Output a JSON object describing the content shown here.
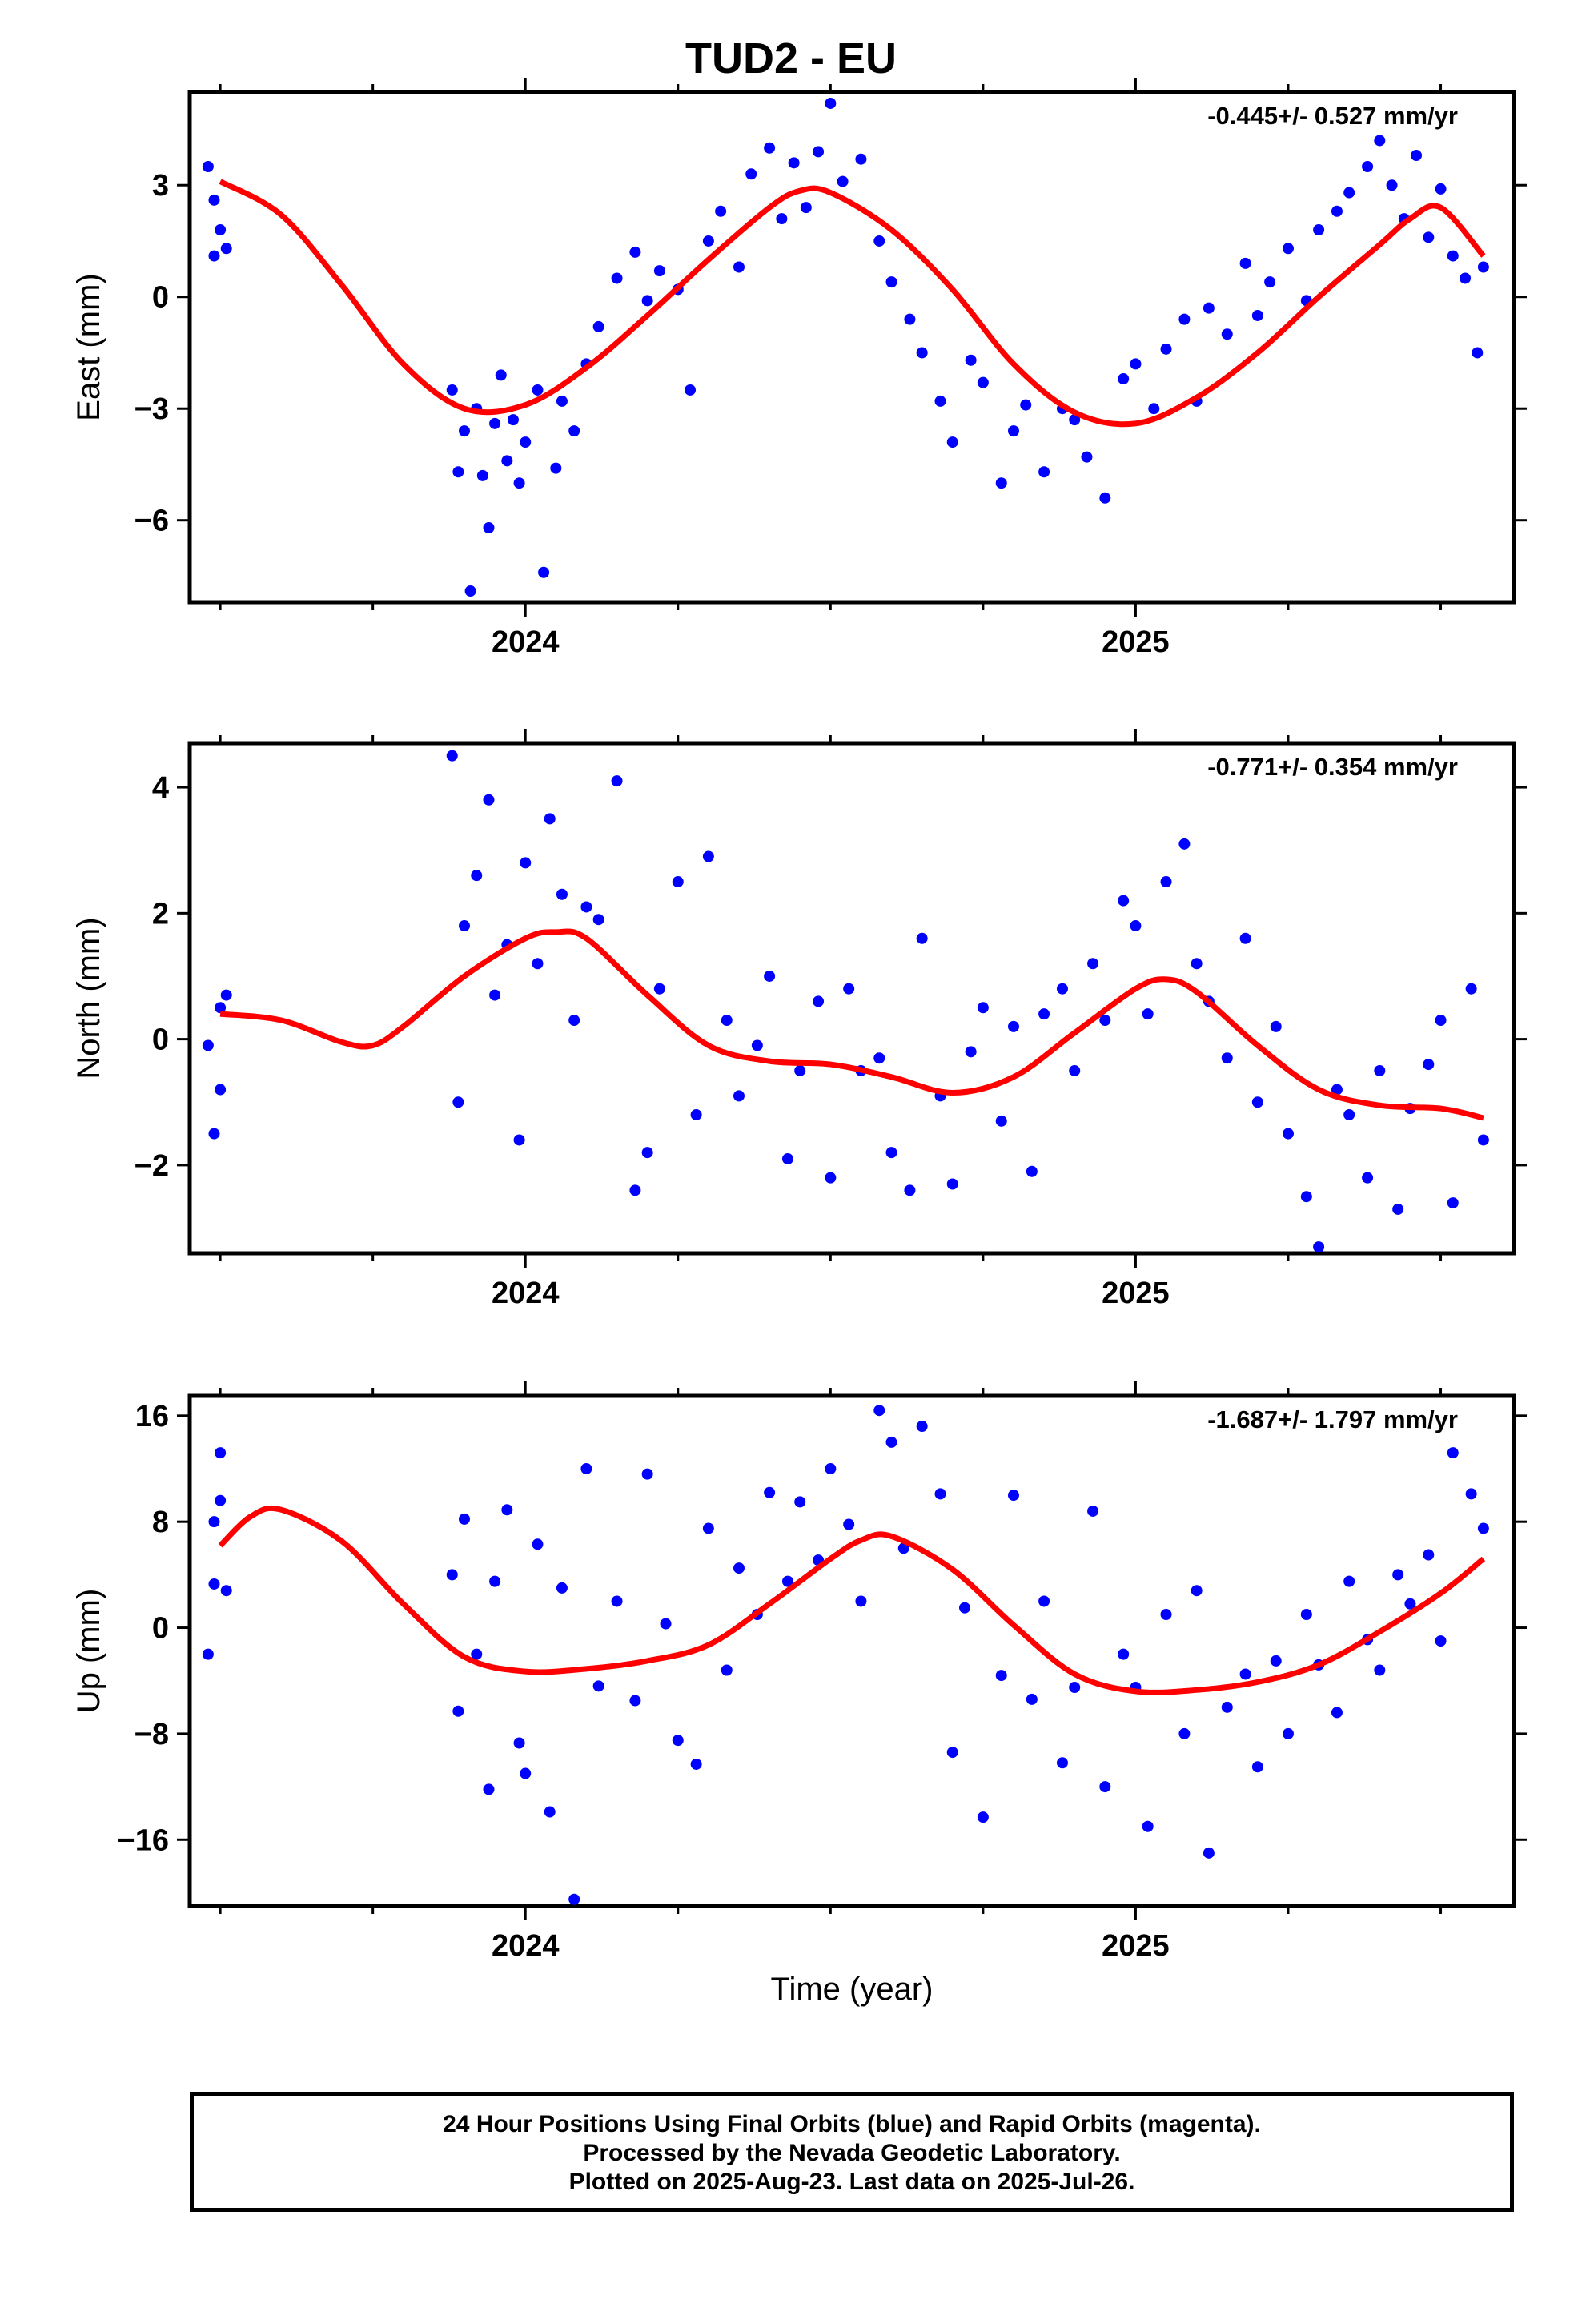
{
  "title": "TUD2 - EU",
  "xlabel": "Time (year)",
  "footer": {
    "line1": "24 Hour Positions Using Final Orbits (blue) and Rapid Orbits (magenta).",
    "line2": "Processed by the Nevada Geodetic Laboratory.",
    "line3": "Plotted on 2025-Aug-23. Last data on 2025-Jul-26."
  },
  "colors": {
    "points": "#0000ff",
    "fit": "#ff0000",
    "axes": "#000000"
  },
  "chart_data": [
    {
      "type": "scatter",
      "ylabel": "East (mm)",
      "rate": "-0.445+/- 0.527 mm/yr",
      "xlim": [
        2023.45,
        2025.62
      ],
      "ylim": [
        -8.2,
        5.5
      ],
      "yticks": [
        3,
        0,
        -3,
        -6
      ],
      "ytick_labels": [
        "3",
        "0",
        "−3",
        "−6"
      ],
      "xticks": [
        2024,
        2025
      ],
      "xtick_labels": [
        "2024",
        "2025"
      ],
      "series": [
        {
          "role": "fit",
          "x": [
            2023.5,
            2023.6,
            2023.7,
            2023.8,
            2023.9,
            2024.0,
            2024.1,
            2024.2,
            2024.3,
            2024.4,
            2024.45,
            2024.5,
            2024.6,
            2024.7,
            2024.8,
            2024.9,
            2025.0,
            2025.1,
            2025.2,
            2025.3,
            2025.4,
            2025.45,
            2025.5,
            2025.57
          ],
          "y": [
            3.1,
            2.2,
            0.3,
            -1.8,
            -3.0,
            -2.9,
            -1.9,
            -0.5,
            1.0,
            2.4,
            2.85,
            2.8,
            1.8,
            0.2,
            -1.8,
            -3.1,
            -3.4,
            -2.7,
            -1.5,
            0.0,
            1.4,
            2.1,
            2.4,
            1.1
          ]
        },
        {
          "role": "points",
          "x": [
            2023.48,
            2023.49,
            2023.49,
            2023.5,
            2023.51,
            2023.88,
            2023.89,
            2023.9,
            2023.91,
            2023.92,
            2023.93,
            2023.94,
            2023.95,
            2023.96,
            2023.97,
            2023.98,
            2023.99,
            2024.0,
            2024.02,
            2024.03,
            2024.05,
            2024.06,
            2024.08,
            2024.1,
            2024.12,
            2024.15,
            2024.18,
            2024.2,
            2024.22,
            2024.25,
            2024.27,
            2024.3,
            2024.32,
            2024.35,
            2024.37,
            2024.4,
            2024.42,
            2024.44,
            2024.46,
            2024.48,
            2024.5,
            2024.52,
            2024.55,
            2024.58,
            2024.6,
            2024.63,
            2024.65,
            2024.68,
            2024.7,
            2024.73,
            2024.75,
            2024.78,
            2024.8,
            2024.82,
            2024.85,
            2024.88,
            2024.9,
            2024.92,
            2024.95,
            2024.98,
            2025.0,
            2025.03,
            2025.05,
            2025.08,
            2025.1,
            2025.12,
            2025.15,
            2025.18,
            2025.2,
            2025.22,
            2025.25,
            2025.28,
            2025.3,
            2025.33,
            2025.35,
            2025.38,
            2025.4,
            2025.42,
            2025.44,
            2025.46,
            2025.48,
            2025.5,
            2025.52,
            2025.54,
            2025.56,
            2025.57
          ],
          "y": [
            3.5,
            2.6,
            1.1,
            1.8,
            1.3,
            -2.5,
            -4.7,
            -3.6,
            -7.9,
            -3.0,
            -4.8,
            -6.2,
            -3.4,
            -2.1,
            -4.4,
            -3.3,
            -5.0,
            -3.9,
            -2.5,
            -7.4,
            -4.6,
            -2.8,
            -3.6,
            -1.8,
            -0.8,
            0.5,
            1.2,
            -0.1,
            0.7,
            0.2,
            -2.5,
            1.5,
            2.3,
            0.8,
            3.3,
            4.0,
            2.1,
            3.6,
            2.4,
            3.9,
            5.2,
            3.1,
            3.7,
            1.5,
            0.4,
            -0.6,
            -1.5,
            -2.8,
            -3.9,
            -1.7,
            -2.3,
            -5.0,
            -3.6,
            -2.9,
            -4.7,
            -3.0,
            -3.3,
            -4.3,
            -5.4,
            -2.2,
            -1.8,
            -3.0,
            -1.4,
            -0.6,
            -2.8,
            -0.3,
            -1.0,
            0.9,
            -0.5,
            0.4,
            1.3,
            -0.1,
            1.8,
            2.3,
            2.8,
            3.5,
            4.2,
            3.0,
            2.1,
            3.8,
            1.6,
            2.9,
            1.1,
            0.5,
            -1.5,
            0.8
          ]
        }
      ]
    },
    {
      "type": "scatter",
      "ylabel": "North (mm)",
      "rate": "-0.771+/- 0.354 mm/yr",
      "xlim": [
        2023.45,
        2025.62
      ],
      "ylim": [
        -3.4,
        4.7
      ],
      "yticks": [
        4,
        2,
        0,
        -2
      ],
      "ytick_labels": [
        "4",
        "2",
        "0",
        "−2"
      ],
      "xticks": [
        2024,
        2025
      ],
      "xtick_labels": [
        "2024",
        "2025"
      ],
      "series": [
        {
          "role": "fit",
          "x": [
            2023.5,
            2023.6,
            2023.7,
            2023.75,
            2023.8,
            2023.9,
            2024.0,
            2024.05,
            2024.1,
            2024.2,
            2024.3,
            2024.4,
            2024.5,
            2024.6,
            2024.7,
            2024.8,
            2024.9,
            2025.0,
            2025.05,
            2025.1,
            2025.2,
            2025.3,
            2025.4,
            2025.5,
            2025.57
          ],
          "y": [
            0.4,
            0.3,
            -0.05,
            -0.1,
            0.2,
            1.0,
            1.6,
            1.7,
            1.6,
            0.7,
            -0.1,
            -0.35,
            -0.4,
            -0.6,
            -0.85,
            -0.6,
            0.1,
            0.8,
            0.95,
            0.75,
            -0.1,
            -0.8,
            -1.05,
            -1.1,
            -1.25
          ]
        },
        {
          "role": "points",
          "x": [
            2023.48,
            2023.49,
            2023.5,
            2023.5,
            2023.51,
            2023.88,
            2023.89,
            2023.9,
            2023.92,
            2023.94,
            2023.95,
            2023.97,
            2023.99,
            2024.0,
            2024.02,
            2024.04,
            2024.06,
            2024.08,
            2024.1,
            2024.12,
            2024.15,
            2024.18,
            2024.2,
            2024.22,
            2024.25,
            2024.28,
            2024.3,
            2024.33,
            2024.35,
            2024.38,
            2024.4,
            2024.43,
            2024.45,
            2024.48,
            2024.5,
            2024.53,
            2024.55,
            2024.58,
            2024.6,
            2024.63,
            2024.65,
            2024.68,
            2024.7,
            2024.73,
            2024.75,
            2024.78,
            2024.8,
            2024.83,
            2024.85,
            2024.88,
            2024.9,
            2024.93,
            2024.95,
            2024.98,
            2025.0,
            2025.02,
            2025.05,
            2025.08,
            2025.1,
            2025.12,
            2025.15,
            2025.18,
            2025.2,
            2025.23,
            2025.25,
            2025.28,
            2025.3,
            2025.33,
            2025.35,
            2025.38,
            2025.4,
            2025.43,
            2025.45,
            2025.48,
            2025.5,
            2025.52,
            2025.55,
            2025.57
          ],
          "y": [
            -0.1,
            -1.5,
            0.5,
            -0.8,
            0.7,
            4.5,
            -1.0,
            1.8,
            2.6,
            3.8,
            0.7,
            1.5,
            -1.6,
            2.8,
            1.2,
            3.5,
            2.3,
            0.3,
            2.1,
            1.9,
            4.1,
            -2.4,
            -1.8,
            0.8,
            2.5,
            -1.2,
            2.9,
            0.3,
            -0.9,
            -0.1,
            1.0,
            -1.9,
            -0.5,
            0.6,
            -2.2,
            0.8,
            -0.5,
            -0.3,
            -1.8,
            -2.4,
            1.6,
            -0.9,
            -2.3,
            -0.2,
            0.5,
            -1.3,
            0.2,
            -2.1,
            0.4,
            0.8,
            -0.5,
            1.2,
            0.3,
            2.2,
            1.8,
            0.4,
            2.5,
            3.1,
            1.2,
            0.6,
            -0.3,
            1.6,
            -1.0,
            0.2,
            -1.5,
            -2.5,
            -3.3,
            -0.8,
            -1.2,
            -2.2,
            -0.5,
            -2.7,
            -1.1,
            -0.4,
            0.3,
            -2.6,
            0.8,
            -1.6
          ]
        }
      ]
    },
    {
      "type": "scatter",
      "ylabel": "Up (mm)",
      "rate": "-1.687+/- 1.797 mm/yr",
      "xlim": [
        2023.45,
        2025.62
      ],
      "ylim": [
        -21,
        17.5
      ],
      "yticks": [
        16,
        8,
        0,
        -8,
        -16
      ],
      "ytick_labels": [
        "16",
        "8",
        "0",
        "−8",
        "−16"
      ],
      "xticks": [
        2024,
        2025
      ],
      "xtick_labels": [
        "2024",
        "2025"
      ],
      "series": [
        {
          "role": "fit",
          "x": [
            2023.5,
            2023.55,
            2023.6,
            2023.7,
            2023.8,
            2023.9,
            2024.0,
            2024.1,
            2024.2,
            2024.3,
            2024.4,
            2024.5,
            2024.55,
            2024.6,
            2024.7,
            2024.8,
            2024.9,
            2025.0,
            2025.1,
            2025.2,
            2025.3,
            2025.4,
            2025.5,
            2025.57
          ],
          "y": [
            6.2,
            8.4,
            8.9,
            6.5,
            1.8,
            -2.2,
            -3.3,
            -3.1,
            -2.5,
            -1.3,
            1.8,
            5.2,
            6.6,
            6.9,
            4.4,
            0.2,
            -3.5,
            -4.8,
            -4.7,
            -4.1,
            -2.8,
            -0.3,
            2.6,
            5.2
          ]
        },
        {
          "role": "points",
          "x": [
            2023.48,
            2023.49,
            2023.49,
            2023.5,
            2023.5,
            2023.51,
            2023.88,
            2023.89,
            2023.9,
            2023.92,
            2023.94,
            2023.95,
            2023.97,
            2023.99,
            2024.0,
            2024.02,
            2024.04,
            2024.06,
            2024.08,
            2024.1,
            2024.12,
            2024.15,
            2024.18,
            2024.2,
            2024.23,
            2024.25,
            2024.28,
            2024.3,
            2024.33,
            2024.35,
            2024.38,
            2024.4,
            2024.43,
            2024.45,
            2024.48,
            2024.5,
            2024.53,
            2024.55,
            2024.58,
            2024.6,
            2024.62,
            2024.65,
            2024.68,
            2024.7,
            2024.72,
            2024.75,
            2024.78,
            2024.8,
            2024.83,
            2024.85,
            2024.88,
            2024.9,
            2024.93,
            2024.95,
            2024.98,
            2025.0,
            2025.02,
            2025.05,
            2025.08,
            2025.1,
            2025.12,
            2025.15,
            2025.18,
            2025.2,
            2025.23,
            2025.25,
            2025.28,
            2025.3,
            2025.33,
            2025.35,
            2025.38,
            2025.4,
            2025.43,
            2025.45,
            2025.48,
            2025.5,
            2025.52,
            2025.55,
            2025.57
          ],
          "y": [
            -2.0,
            3.3,
            8.0,
            13.2,
            9.6,
            2.8,
            4.0,
            -6.3,
            8.2,
            -2.0,
            -12.2,
            3.5,
            8.9,
            -8.7,
            -11.0,
            6.3,
            -13.9,
            3.0,
            -20.5,
            12.0,
            -4.4,
            2.0,
            -5.5,
            11.6,
            0.3,
            -8.5,
            -10.3,
            7.5,
            -3.2,
            4.5,
            1.0,
            10.2,
            3.5,
            9.5,
            5.1,
            12.0,
            7.8,
            2.0,
            16.4,
            14.0,
            6.0,
            15.2,
            10.1,
            -9.4,
            1.5,
            -14.3,
            -3.6,
            10.0,
            -5.4,
            2.0,
            -10.2,
            -4.5,
            8.8,
            -12.0,
            -2.0,
            -4.5,
            -15.0,
            1.0,
            -8.0,
            2.8,
            -17.0,
            -6.0,
            -3.5,
            -10.5,
            -2.5,
            -8.0,
            1.0,
            -2.8,
            -6.4,
            3.5,
            -0.9,
            -3.2,
            4.0,
            1.8,
            5.5,
            -1.0,
            13.2,
            10.1,
            7.5
          ]
        }
      ]
    }
  ]
}
